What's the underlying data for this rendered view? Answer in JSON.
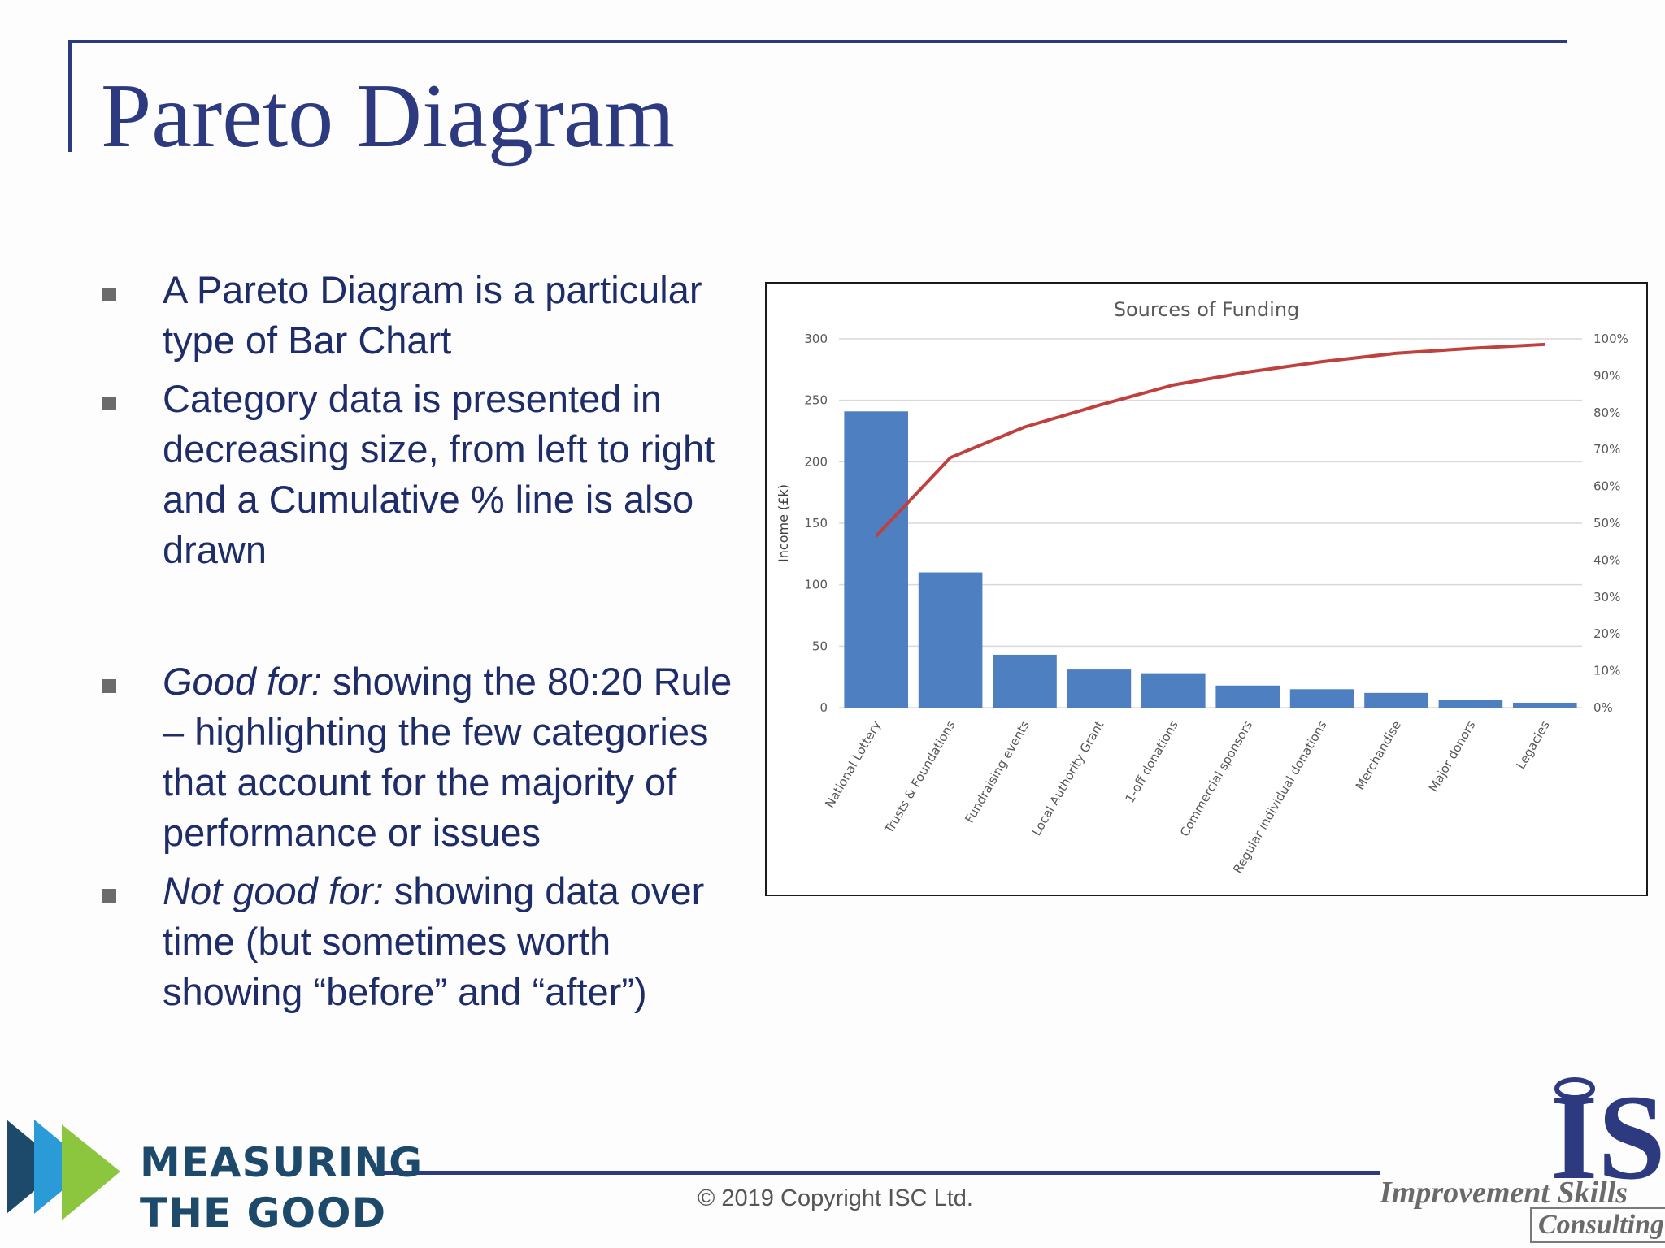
{
  "slide": {
    "title": "Pareto Diagram",
    "bullets": [
      {
        "lead": "",
        "text": "A Pareto Diagram is a particular type of Bar Chart"
      },
      {
        "lead": "",
        "text": "Category data is presented in decreasing size, from left to right and a Cumulative % line is also drawn"
      },
      {
        "lead": "Good for:",
        "text": " showing the 80:20 Rule – highlighting the few categories that account for the majority of performance or issues"
      },
      {
        "lead": "Not good for:",
        "text": " showing data over time (but sometimes worth showing “before” and “after”)"
      }
    ]
  },
  "footer": {
    "copyright": "© 2019 Copyright ISC Ltd.",
    "left_logo": {
      "line1": "MEASURING",
      "line2": "THE GOOD"
    },
    "right_logo": {
      "mark": "IS",
      "name": "Improvement Skills",
      "sub": "Consulting"
    }
  },
  "colors": {
    "title": "#2e3a80",
    "text": "#1e2c6a",
    "bar": "#4e7fc1",
    "line": "#c0403e"
  },
  "chart_data": {
    "type": "bar",
    "title": "Sources of Funding",
    "xlabel": "",
    "ylabel": "Income (£k)",
    "categories": [
      "National Lottery",
      "Trusts & Foundations",
      "Fundraising events",
      "Local Authority Grant",
      "1-off donations",
      "Commercial sponsors",
      "Regular individual donations",
      "Merchandise",
      "Major donors",
      "Legacies"
    ],
    "series": [
      {
        "name": "",
        "type": "bar",
        "values": [
          241,
          110,
          43,
          31,
          28,
          18,
          15,
          12,
          6,
          4
        ]
      },
      {
        "name": "",
        "type": "line",
        "axis": "right",
        "values": [
          46.5,
          67.8,
          76.1,
          82.0,
          87.5,
          91.0,
          93.8,
          96.1,
          97.4,
          98.5
        ]
      }
    ],
    "ylim": [
      0,
      300
    ],
    "yticks": [
      0,
      50,
      100,
      150,
      200,
      250,
      300
    ],
    "y2lim": [
      0,
      100
    ],
    "y2ticks": [
      "0%",
      "10%",
      "20%",
      "30%",
      "40%",
      "50%",
      "60%",
      "70%",
      "80%",
      "90%",
      "100%"
    ],
    "grid": true,
    "legend": "none"
  }
}
